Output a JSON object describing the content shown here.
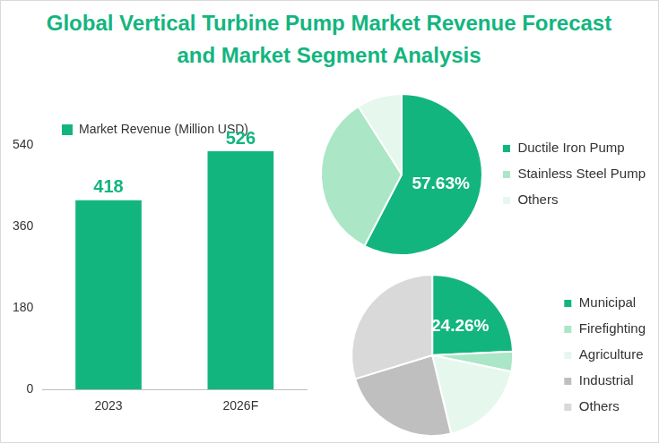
{
  "title": "Global Vertical Turbine Pump Market Revenue Forecast and Market Segment Analysis",
  "chart_data": [
    {
      "type": "bar",
      "categories": [
        "2023",
        "2026F"
      ],
      "series": [
        {
          "name": "Market Revenue (Million USD)",
          "color": "#13b57f",
          "values": [
            418,
            526
          ]
        }
      ],
      "ylim": [
        0,
        540
      ],
      "yticks": [
        0,
        180,
        360,
        540
      ],
      "grid": false,
      "legend": "top",
      "data_labels": true
    },
    {
      "type": "pie",
      "categories": [
        "Ductile Iron Pump",
        "Stainless Steel Pump",
        "Others"
      ],
      "values": [
        57.63,
        33.37,
        9.0
      ],
      "value_labels": [
        "57.63%",
        null,
        null
      ],
      "colors": [
        "#13b57f",
        "#abe6c6",
        "#e6f7ee"
      ],
      "legend": "right"
    },
    {
      "type": "pie",
      "categories": [
        "Municipal",
        "Firefighting",
        "Agriculture",
        "Industrial",
        "Others"
      ],
      "values": [
        24.26,
        4.0,
        18.0,
        24.0,
        29.74
      ],
      "value_labels": [
        "24.26%",
        null,
        null,
        null,
        null
      ],
      "colors": [
        "#13b57f",
        "#abe6c6",
        "#e6f7ee",
        "#bfbfbf",
        "#d9d9d9"
      ],
      "legend": "right"
    }
  ]
}
